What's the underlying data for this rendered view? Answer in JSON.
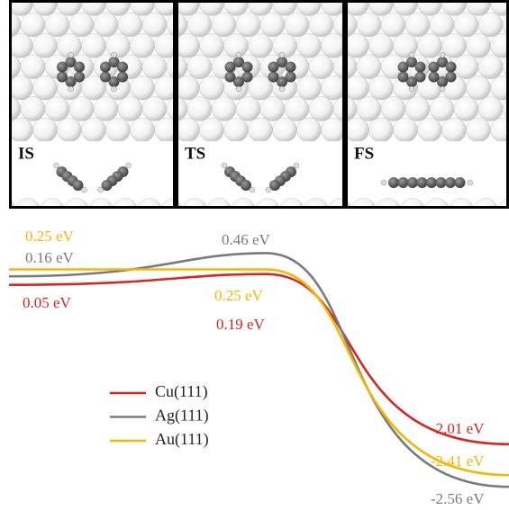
{
  "chart_data": {
    "type": "line",
    "categories": [
      "IS",
      "TS",
      "FS"
    ],
    "series": [
      {
        "name": "Cu(111)",
        "color": "#d7261e",
        "values": [
          0.05,
          0.19,
          -2.01
        ],
        "value_labels": [
          "0.05 eV",
          "0.19 eV",
          "-2.01 eV"
        ]
      },
      {
        "name": "Ag(111)",
        "color": "#7a7a7a",
        "values": [
          0.16,
          0.46,
          -2.56
        ],
        "value_labels": [
          "0.16 eV",
          "0.46 eV",
          "-2.56 eV"
        ]
      },
      {
        "name": "Au(111)",
        "color": "#f2b705",
        "values": [
          0.25,
          0.25,
          -2.41
        ],
        "value_labels": [
          "0.25 eV",
          "0.25 eV",
          "-2.41 eV"
        ]
      }
    ]
  }
}
